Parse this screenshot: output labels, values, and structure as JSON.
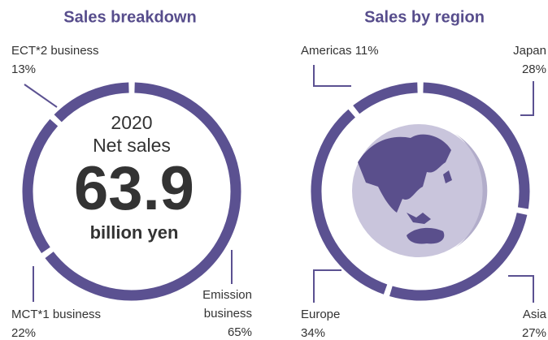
{
  "chart_data": [
    {
      "type": "donut",
      "title": "Sales breakdown",
      "center_text": [
        "2020",
        "Net sales",
        "63.9",
        "billion yen"
      ],
      "categories": [
        "Emission business",
        "MCT*1 business",
        "ECT*2 business"
      ],
      "values": [
        65,
        22,
        13
      ],
      "value_labels": [
        "65%",
        "22%",
        "13%"
      ],
      "color": "#5b5191"
    },
    {
      "type": "donut",
      "title": "Sales by region",
      "categories": [
        "Japan",
        "Asia",
        "Europe",
        "Americas"
      ],
      "values": [
        28,
        27,
        34,
        11
      ],
      "value_labels": [
        "28%",
        "27%",
        "34%",
        "11%"
      ],
      "color": "#5b5191"
    }
  ]
}
